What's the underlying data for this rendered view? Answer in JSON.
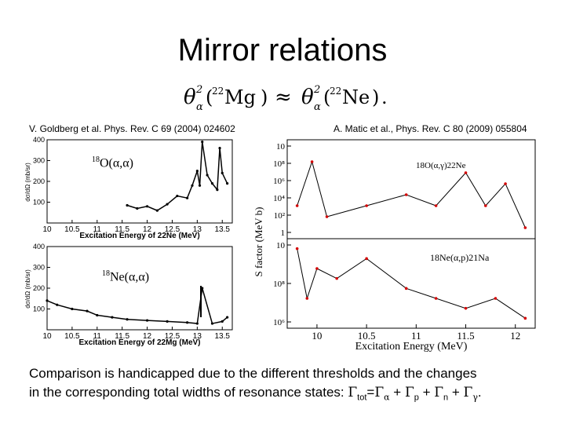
{
  "slide": {
    "title": "Mirror relations",
    "formula": {
      "lhs_symbol": "θ",
      "lhs_super": "2",
      "lhs_sub": "α",
      "lhs_mass": "22",
      "lhs_element": "Mg",
      "relation": "≈",
      "rhs_symbol": "θ",
      "rhs_super": "2",
      "rhs_sub": "α",
      "rhs_mass": "22",
      "rhs_element": "Ne",
      "end": "."
    },
    "citation_left": "V. Goldberg et al. Phys. Rev. C 69 (2004) 024602",
    "citation_right": "A. Matic et al., Phys. Rev. C 80 (2009) 055804",
    "reaction_top_left": {
      "mass": "18",
      "text": "O(α,α)"
    },
    "reaction_bottom_left": {
      "mass": "18",
      "text": "Ne(α,α)"
    },
    "caption": {
      "line1": "Comparison is handicapped due to the different thresholds and the changes",
      "line2_prefix": "in the corresponding total widths of resonance states: ",
      "gamma": "Γ",
      "sub_tot": "tot",
      "eq": "=",
      "sub_alpha": "α",
      "plus": " + ",
      "sub_p": "p",
      "sub_n": "n",
      "sub_gamma": "γ",
      "end": "."
    }
  },
  "chart_data": [
    {
      "type": "line",
      "id": "left-top",
      "title": "",
      "xlabel": "Excitation Energy of 22Ne (MeV)",
      "ylabel": "dσ/dΩ (mb/sr)",
      "xlim": [
        10,
        13.7
      ],
      "ylim": [
        0,
        400
      ],
      "xticks": [
        "10",
        "10.5",
        "11",
        "11.5",
        "12",
        "12.5",
        "13",
        "13.5"
      ],
      "yticks": [
        "100",
        "200",
        "300",
        "400"
      ],
      "x": [
        11.6,
        11.8,
        12.0,
        12.2,
        12.4,
        12.6,
        12.8,
        12.9,
        13.0,
        13.05,
        13.1,
        13.2,
        13.3,
        13.4,
        13.45,
        13.5,
        13.6
      ],
      "values": [
        85,
        70,
        80,
        60,
        90,
        130,
        120,
        180,
        250,
        180,
        390,
        230,
        190,
        160,
        360,
        240,
        190
      ]
    },
    {
      "type": "line",
      "id": "left-bottom",
      "title": "",
      "xlabel": "Excitation Energy of 22Mg (MeV)",
      "ylabel": "dσ/dΩ (mb/sr)",
      "xlim": [
        10,
        13.7
      ],
      "ylim": [
        0,
        400
      ],
      "xticks": [
        "10",
        "10.5",
        "11",
        "11.5",
        "12",
        "12.5",
        "13",
        "13.5"
      ],
      "yticks": [
        "100",
        "200",
        "300",
        "400"
      ],
      "x": [
        10.0,
        10.2,
        10.5,
        10.8,
        11.0,
        11.3,
        11.6,
        12.0,
        12.4,
        12.8,
        13.0,
        13.1,
        13.3,
        13.5,
        13.6
      ],
      "values": [
        140,
        120,
        100,
        90,
        70,
        60,
        50,
        45,
        40,
        35,
        30,
        200,
        30,
        40,
        60
      ]
    },
    {
      "type": "line",
      "id": "right-top",
      "title": "18O(α,γ)22Ne",
      "xlabel": "Excitation Energy (MeV)",
      "ylabel": "S factor (MeV b)",
      "xlim": [
        9.7,
        12.2
      ],
      "ylim": [
        1,
        10
      ],
      "yticks": [
        "10",
        "10⁸",
        "10⁶",
        "10⁴",
        "10²",
        "1"
      ],
      "x": [
        9.8,
        9.95,
        10.1,
        10.5,
        10.9,
        11.2,
        11.5,
        11.7,
        11.9,
        12.1
      ],
      "values": [
        4,
        8,
        3,
        4,
        5,
        4,
        7,
        4,
        6,
        2
      ]
    },
    {
      "type": "line",
      "id": "right-bottom",
      "title": "18Ne(α,p)21Na",
      "xlabel": "Excitation Energy (MeV)",
      "ylabel": "S factor (MeV b)",
      "xlim": [
        9.7,
        12.2
      ],
      "ylim": [
        1,
        10
      ],
      "xticks": [
        "10",
        "10.5",
        "11",
        "11.5",
        "12"
      ],
      "yticks": [
        "10",
        "10⁸",
        "10⁶"
      ],
      "x": [
        9.8,
        9.9,
        10.0,
        10.2,
        10.5,
        10.9,
        11.2,
        11.5,
        11.8,
        12.1
      ],
      "values": [
        9,
        4,
        7,
        6,
        8,
        5,
        4,
        3,
        4,
        2
      ]
    }
  ]
}
